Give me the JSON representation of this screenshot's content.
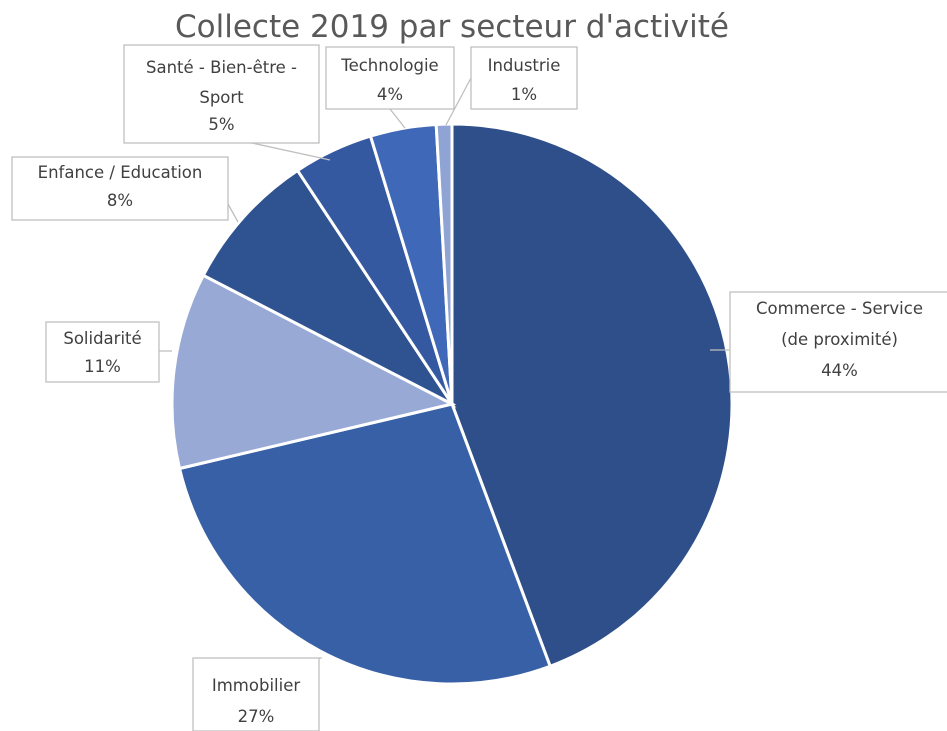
{
  "chart_data": {
    "type": "pie",
    "title": "Collecte 2019 par secteur d'activité",
    "slices": [
      {
        "label_lines": [
          "Commerce - Service",
          "(de proximité)"
        ],
        "percent_label": "44%",
        "value": 44.3,
        "color": "#2e4f8a"
      },
      {
        "label_lines": [
          "Immobilier"
        ],
        "percent_label": "27%",
        "value": 27.0,
        "color": "#3860a6"
      },
      {
        "label_lines": [
          "Solidarité"
        ],
        "percent_label": "11%",
        "value": 11.3,
        "color": "#98a9d6"
      },
      {
        "label_lines": [
          "Enfance / Education"
        ],
        "percent_label": "8%",
        "value": 8.1,
        "color": "#2f5290"
      },
      {
        "label_lines": [
          "Santé - Bien-être -",
          "Sport"
        ],
        "percent_label": "5%",
        "value": 4.6,
        "color": "#3559a0"
      },
      {
        "label_lines": [
          "Technologie"
        ],
        "percent_label": "4%",
        "value": 3.8,
        "color": "#4068b8"
      },
      {
        "label_lines": [
          "Industrie"
        ],
        "percent_label": "1%",
        "value": 0.9,
        "color": "#8fa3d4"
      }
    ]
  }
}
